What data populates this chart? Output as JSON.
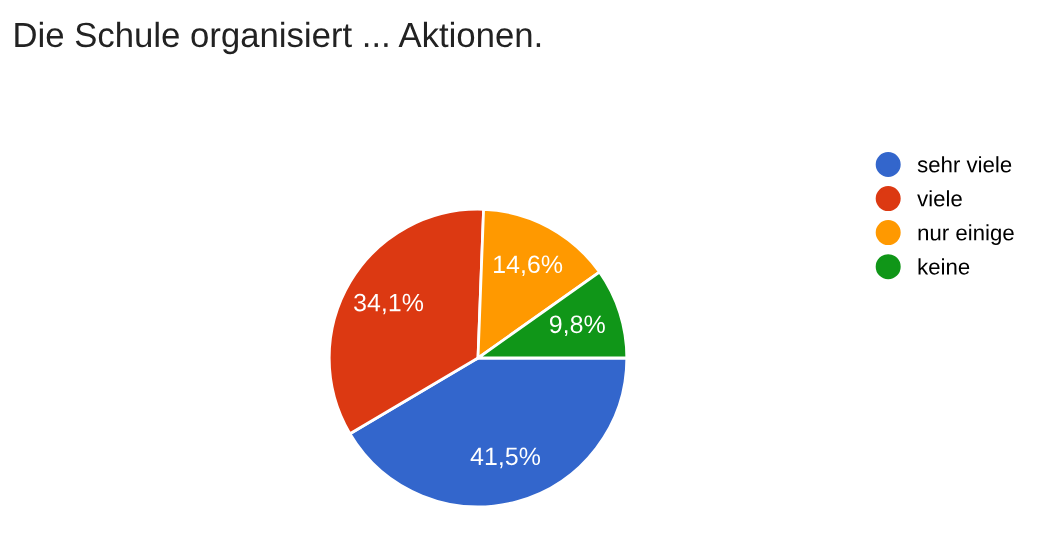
{
  "chart_data": {
    "type": "pie",
    "title": "Die Schule organisiert ... Aktionen.",
    "categories": [
      "sehr viele",
      "viele",
      "nur einige",
      "keine"
    ],
    "values": [
      41.5,
      34.1,
      14.6,
      9.8
    ],
    "colors": [
      "#3366cc",
      "#dc3912",
      "#ff9900",
      "#109618"
    ],
    "value_labels": [
      "41,5%",
      "34,1%",
      "14,6%",
      "9,8%"
    ],
    "legend": "right"
  }
}
